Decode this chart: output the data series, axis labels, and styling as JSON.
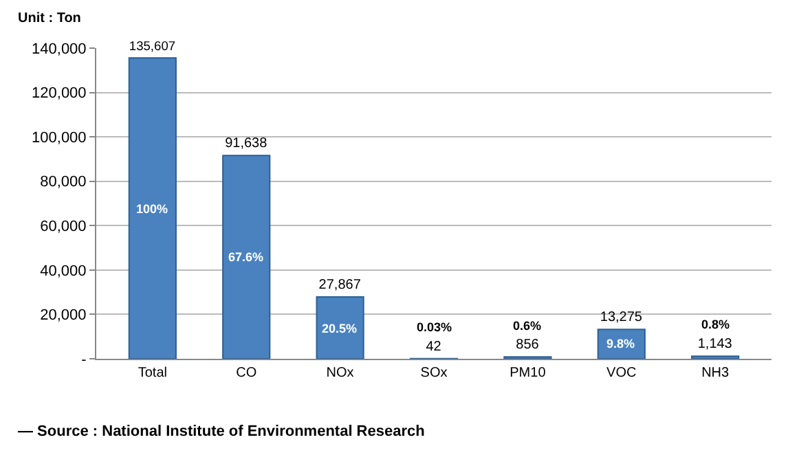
{
  "chart_data": {
    "type": "bar",
    "ylabel": "Unit : Ton",
    "categories": [
      "Total",
      "CO",
      "NOx",
      "SOx",
      "PM10",
      "VOC",
      "NH3"
    ],
    "values": [
      135607,
      91638,
      27867,
      42,
      856,
      13275,
      1143
    ],
    "value_labels": [
      "135,607",
      "91,638",
      "27,867",
      "42",
      "856",
      "13,275",
      "1,143"
    ],
    "color": "#4a82c0",
    "ylim": [
      0,
      140000
    ],
    "yticks": [
      {
        "value": 0,
        "label": "-"
      },
      {
        "value": 20000,
        "label": "20,000"
      },
      {
        "value": 40000,
        "label": "40,000"
      },
      {
        "value": 60000,
        "label": "60,000"
      },
      {
        "value": 80000,
        "label": "80,000"
      },
      {
        "value": 100000,
        "label": "100,000"
      },
      {
        "value": 120000,
        "label": "120,000"
      },
      {
        "value": 140000,
        "label": "140,000"
      }
    ],
    "grid": "y",
    "annotations": [
      "100%",
      "67.6%",
      "20.5%",
      "0.03%",
      "0.6%",
      "9.8%",
      "0.8%",
      "— Source : National Institute of Environmental Research"
    ]
  }
}
